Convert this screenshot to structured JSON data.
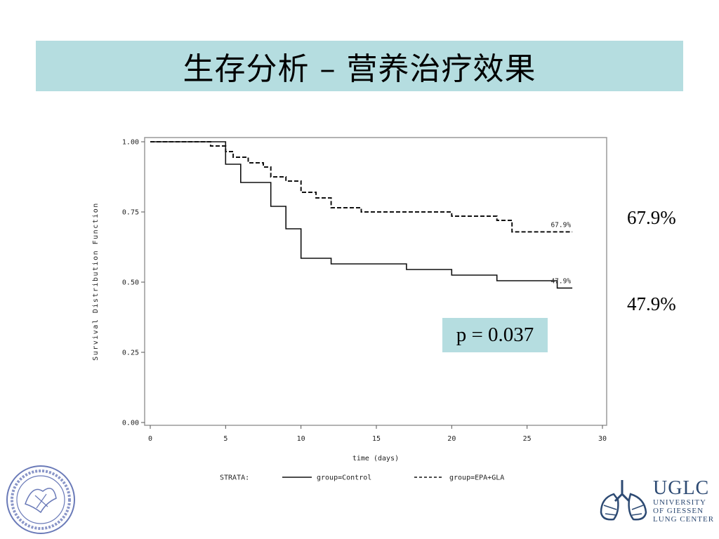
{
  "title": "生存分析 – 营养治疗效果",
  "labels": {
    "control_end": "47.9%",
    "epa_end": "67.9%"
  },
  "p_value": "p = 0.037",
  "logo": {
    "line1": "UGLC",
    "line2": "UNIVERSITY",
    "line3": "OF GIESSEN",
    "line4": "LUNG CENTER"
  },
  "colors": {
    "title_bg": "#b5dde0",
    "pbox_bg": "#b5dde0",
    "logo": "#2d4a73"
  },
  "chart_data": {
    "type": "line",
    "xlabel": "time (days)",
    "ylabel": "Survival Distribution Function",
    "xlim": [
      0,
      30
    ],
    "ylim": [
      0,
      1
    ],
    "xticks": [
      "0",
      "5",
      "10",
      "15",
      "20",
      "25",
      "30"
    ],
    "yticks": [
      "0.00",
      "0.25",
      "0.50",
      "0.75",
      "1.00"
    ],
    "legend_title": "STRATA:",
    "series": [
      {
        "name": "group=Control",
        "style": "solid",
        "end_label": "47.9%",
        "points": [
          [
            0,
            1.0
          ],
          [
            5,
            1.0
          ],
          [
            5,
            0.92
          ],
          [
            6,
            0.92
          ],
          [
            6,
            0.855
          ],
          [
            8,
            0.855
          ],
          [
            8,
            0.77
          ],
          [
            9,
            0.77
          ],
          [
            9,
            0.69
          ],
          [
            10,
            0.69
          ],
          [
            10,
            0.585
          ],
          [
            12,
            0.585
          ],
          [
            12,
            0.565
          ],
          [
            17,
            0.565
          ],
          [
            17,
            0.545
          ],
          [
            20,
            0.545
          ],
          [
            20,
            0.525
          ],
          [
            23,
            0.525
          ],
          [
            23,
            0.505
          ],
          [
            27,
            0.505
          ],
          [
            27,
            0.479
          ],
          [
            28,
            0.479
          ]
        ]
      },
      {
        "name": "group=EPA+GLA",
        "style": "dashed",
        "end_label": "67.9%",
        "points": [
          [
            0,
            1.0
          ],
          [
            4,
            1.0
          ],
          [
            4,
            0.985
          ],
          [
            5,
            0.985
          ],
          [
            5,
            0.965
          ],
          [
            5.5,
            0.965
          ],
          [
            5.5,
            0.945
          ],
          [
            6.5,
            0.945
          ],
          [
            6.5,
            0.925
          ],
          [
            7.5,
            0.925
          ],
          [
            7.5,
            0.91
          ],
          [
            8,
            0.91
          ],
          [
            8,
            0.875
          ],
          [
            9,
            0.875
          ],
          [
            9,
            0.86
          ],
          [
            10,
            0.86
          ],
          [
            10,
            0.82
          ],
          [
            11,
            0.82
          ],
          [
            11,
            0.8
          ],
          [
            12,
            0.8
          ],
          [
            12,
            0.765
          ],
          [
            14,
            0.765
          ],
          [
            14,
            0.75
          ],
          [
            20,
            0.75
          ],
          [
            20,
            0.735
          ],
          [
            23,
            0.735
          ],
          [
            23,
            0.72
          ],
          [
            24,
            0.72
          ],
          [
            24,
            0.679
          ],
          [
            28,
            0.679
          ]
        ]
      }
    ]
  }
}
